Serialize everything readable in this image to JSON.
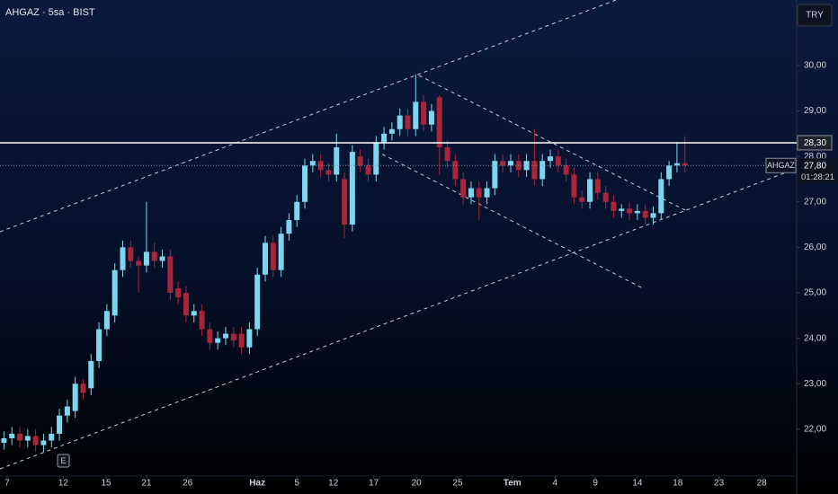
{
  "chart_data": {
    "type": "candlestick",
    "title": "AHGAZ · 5sa · BIST",
    "currency_button": "TRY",
    "event_marker": "E",
    "symbol_tag": "AHGAZ",
    "countdown": "01:28:21",
    "up_color": "#7dd6ee",
    "down_color": "#a8253a",
    "open": [
      21.7,
      21.8,
      21.9,
      21.75,
      21.85,
      21.65,
      21.75,
      21.9,
      22.3,
      22.4,
      23.0,
      22.9,
      23.5,
      24.2,
      24.5,
      25.5,
      26.0,
      25.7,
      25.6,
      25.9,
      25.7,
      25.8,
      25.1,
      25.0,
      24.5,
      24.6,
      24.2,
      23.9,
      24.0,
      24.1,
      24.1,
      23.8,
      24.2,
      25.4,
      26.1,
      25.5,
      26.3,
      26.6,
      27.0,
      27.8,
      27.9,
      27.7,
      27.6,
      27.5,
      26.5,
      28.0,
      27.8,
      27.6,
      28.3,
      28.5,
      28.6,
      28.9,
      28.6,
      29.2,
      28.7,
      29.3,
      28.2,
      27.9,
      27.5,
      27.1,
      27.3,
      27.1,
      27.3,
      27.9,
      27.8,
      27.9,
      27.7,
      27.9,
      27.5,
      27.9,
      28.0,
      27.8,
      27.6,
      27.1,
      27.0,
      27.5,
      27.2,
      27.0,
      26.8,
      26.85,
      26.75,
      26.8,
      26.65,
      26.75,
      27.5,
      27.8,
      27.85
    ],
    "high": [
      21.95,
      22.05,
      22.05,
      22.0,
      22.0,
      21.9,
      22.05,
      22.45,
      22.65,
      23.15,
      23.1,
      23.65,
      24.35,
      24.75,
      25.65,
      26.15,
      26.15,
      25.8,
      27.0,
      26.1,
      25.95,
      25.95,
      25.25,
      25.15,
      24.75,
      24.75,
      24.35,
      24.15,
      24.25,
      24.25,
      24.25,
      24.35,
      25.55,
      26.25,
      26.25,
      26.45,
      26.75,
      27.15,
      27.95,
      28.05,
      28.05,
      27.85,
      28.5,
      27.65,
      28.25,
      28.15,
      27.95,
      28.45,
      28.65,
      28.75,
      29.05,
      29.05,
      29.8,
      29.35,
      29.15,
      29.35,
      28.35,
      28.05,
      27.65,
      27.45,
      27.45,
      27.45,
      28.05,
      28.05,
      28.05,
      28.05,
      28.05,
      28.6,
      28.05,
      28.15,
      28.15,
      27.95,
      27.75,
      27.25,
      27.65,
      27.65,
      27.35,
      27.15,
      26.95,
      27.0,
      26.95,
      26.95,
      26.9,
      27.65,
      27.9,
      28.3,
      28.45
    ],
    "low": [
      21.55,
      21.65,
      21.6,
      21.6,
      21.5,
      21.5,
      21.6,
      21.75,
      22.15,
      22.25,
      22.65,
      22.75,
      23.35,
      24.05,
      24.35,
      25.35,
      25.55,
      25.0,
      25.45,
      25.55,
      25.55,
      24.85,
      24.75,
      24.35,
      24.35,
      24.05,
      23.75,
      23.75,
      23.85,
      23.8,
      23.65,
      23.65,
      24.05,
      25.25,
      25.35,
      25.35,
      26.15,
      26.45,
      26.85,
      27.65,
      27.55,
      27.45,
      27.45,
      26.2,
      26.35,
      27.65,
      27.45,
      27.45,
      28.15,
      28.35,
      28.45,
      28.45,
      28.45,
      28.55,
      28.55,
      27.6,
      27.75,
      27.35,
      26.95,
      26.95,
      26.6,
      26.95,
      27.15,
      27.65,
      27.65,
      27.55,
      27.55,
      27.35,
      27.35,
      27.75,
      27.65,
      27.45,
      26.95,
      26.85,
      26.85,
      27.05,
      26.85,
      26.65,
      26.65,
      26.6,
      26.6,
      26.5,
      26.5,
      26.6,
      27.35,
      27.65,
      27.65
    ],
    "close": [
      21.8,
      21.9,
      21.75,
      21.85,
      21.65,
      21.75,
      21.9,
      22.3,
      22.5,
      23.0,
      22.8,
      23.5,
      24.2,
      24.6,
      25.5,
      26.0,
      25.7,
      25.6,
      25.9,
      25.7,
      25.8,
      25.0,
      24.9,
      24.5,
      24.6,
      24.2,
      23.9,
      24.0,
      24.1,
      23.95,
      23.8,
      24.2,
      25.4,
      26.1,
      25.5,
      26.3,
      26.6,
      27.0,
      27.8,
      27.9,
      27.7,
      27.6,
      28.2,
      26.5,
      28.1,
      27.8,
      27.6,
      28.3,
      28.5,
      28.6,
      28.9,
      28.6,
      29.2,
      28.7,
      29.0,
      28.2,
      27.9,
      27.5,
      27.1,
      27.3,
      27.1,
      27.3,
      27.9,
      27.8,
      27.9,
      27.7,
      27.9,
      27.5,
      27.9,
      28.0,
      27.8,
      27.6,
      27.1,
      27.0,
      27.5,
      27.2,
      27.0,
      26.8,
      26.85,
      26.75,
      26.8,
      26.65,
      26.75,
      27.5,
      27.8,
      27.85,
      27.8
    ],
    "ylim": [
      20.97,
      31.44
    ],
    "yticks": [
      {
        "value": 22,
        "label": "22,00"
      },
      {
        "value": 23,
        "label": "23,00"
      },
      {
        "value": 24,
        "label": "24,00"
      },
      {
        "value": 25,
        "label": "25,00"
      },
      {
        "value": 26,
        "label": "26,00"
      },
      {
        "value": 27,
        "label": "27,00"
      },
      {
        "value": 28,
        "label": "28,00"
      },
      {
        "value": 29,
        "label": "29,00"
      },
      {
        "value": 30,
        "label": "30,00"
      }
    ],
    "xlim": [
      -0.5,
      100
    ],
    "xticks": [
      {
        "value": 0.4,
        "label": "7"
      },
      {
        "value": 7.5,
        "label": "12"
      },
      {
        "value": 12.9,
        "label": "15"
      },
      {
        "value": 18,
        "label": "21"
      },
      {
        "value": 23.2,
        "label": "26"
      },
      {
        "value": 32,
        "label": "Haz"
      },
      {
        "value": 37,
        "label": "5"
      },
      {
        "value": 41.6,
        "label": "12"
      },
      {
        "value": 46.7,
        "label": "17"
      },
      {
        "value": 52.1,
        "label": "20"
      },
      {
        "value": 57.3,
        "label": "25"
      },
      {
        "value": 64.2,
        "label": "Tem"
      },
      {
        "value": 69.6,
        "label": "4"
      },
      {
        "value": 74.7,
        "label": "9"
      },
      {
        "value": 80,
        "label": "14"
      },
      {
        "value": 85.1,
        "label": "18"
      },
      {
        "value": 90.3,
        "label": "23"
      },
      {
        "value": 95.7,
        "label": "28"
      }
    ],
    "hline": {
      "value": 28.3,
      "label": "28,30"
    },
    "last_price": {
      "value": 27.8,
      "label": "27,80"
    }
  }
}
